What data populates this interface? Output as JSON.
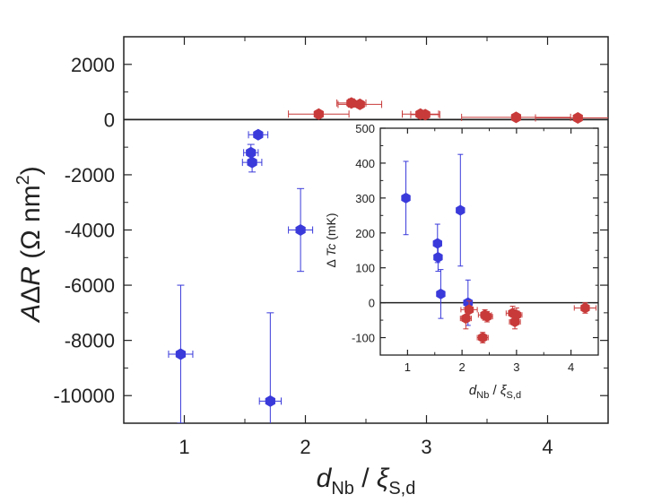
{
  "colors": {
    "blue": "#3a3adb",
    "red": "#c83a3a",
    "axis": "#222222"
  },
  "chart_data": [
    {
      "type": "scatter",
      "panel": "main",
      "ylabel_parts": {
        "A": "A",
        "delta": "Δ",
        "R": "R",
        "unit": " (Ω nm",
        "sup": "2",
        "close": ")"
      },
      "xlabel_parts": {
        "d": "d",
        "sub1": "Nb",
        "slash": " / ",
        "xi": "ξ",
        "sub2": "S,d"
      },
      "xlim": [
        0.5,
        4.5
      ],
      "ylim": [
        -11000,
        3000
      ],
      "xticks": [
        1,
        2,
        3,
        4
      ],
      "yticks": [
        2000,
        0,
        -2000,
        -4000,
        -6000,
        -8000,
        -10000
      ],
      "xtick_labels": [
        "1",
        "2",
        "3",
        "4"
      ],
      "ytick_labels": [
        "2000",
        "0",
        "-2000",
        "-4000",
        "-6000",
        "-8000",
        "-10000"
      ],
      "zero_line": 0,
      "series": [
        {
          "color": "blue",
          "points": [
            {
              "x": 1.61,
              "y": -550,
              "xerr": 0.08,
              "yerr": 0
            },
            {
              "x": 1.55,
              "y": -1200,
              "xerr": 0.06,
              "yerr": 300
            },
            {
              "x": 1.56,
              "y": -1550,
              "xerr": 0.08,
              "yerr": 350
            },
            {
              "x": 1.96,
              "y": -4000,
              "xerr": 0.1,
              "yerr": 1500
            },
            {
              "x": 0.97,
              "y": -8500,
              "xerr": 0.1,
              "yerr": 2500
            },
            {
              "x": 1.71,
              "y": -10200,
              "xerr": 0.09,
              "yerr": 3200
            }
          ]
        },
        {
          "color": "red",
          "points": [
            {
              "x": 2.11,
              "y": 200,
              "xerr": 0.25,
              "yerr": 80
            },
            {
              "x": 2.38,
              "y": 600,
              "xerr": 0.12,
              "yerr": 150
            },
            {
              "x": 2.45,
              "y": 550,
              "xerr": 0.18,
              "yerr": 120
            },
            {
              "x": 2.95,
              "y": 200,
              "xerr": 0.15,
              "yerr": 60
            },
            {
              "x": 2.99,
              "y": 180,
              "xerr": 0.12,
              "yerr": 50
            },
            {
              "x": 3.74,
              "y": 80,
              "xerr": 0.45,
              "yerr": 40
            },
            {
              "x": 4.25,
              "y": 60,
              "xerr": 0.35,
              "yerr": 40
            }
          ]
        }
      ]
    },
    {
      "type": "scatter",
      "panel": "inset",
      "ylabel_parts": {
        "delta": "Δ ",
        "T": "Tc",
        "unit": " (mK)"
      },
      "xlabel_parts": {
        "d": "d",
        "sub1": "Nb",
        "slash": " / ",
        "xi": "ξ",
        "sub2": "S,d"
      },
      "xlim": [
        0.5,
        4.5
      ],
      "ylim": [
        -150,
        500
      ],
      "xticks": [
        1,
        2,
        3,
        4
      ],
      "yticks": [
        500,
        400,
        300,
        200,
        100,
        0,
        -100
      ],
      "xtick_labels": [
        "1",
        "2",
        "3",
        "4"
      ],
      "ytick_labels": [
        "500",
        "400",
        "300",
        "200",
        "100",
        "0",
        "-100"
      ],
      "zero_line": 0,
      "series": [
        {
          "color": "blue",
          "points": [
            {
              "x": 0.97,
              "y": 300,
              "xerr": 0,
              "yerr": 105
            },
            {
              "x": 1.55,
              "y": 170,
              "xerr": 0.04,
              "yerr": 55
            },
            {
              "x": 1.56,
              "y": 130,
              "xerr": 0.05,
              "yerr": 40
            },
            {
              "x": 1.61,
              "y": 25,
              "xerr": 0.05,
              "yerr": 70
            },
            {
              "x": 1.97,
              "y": 265,
              "xerr": 0,
              "yerr": 160
            },
            {
              "x": 2.11,
              "y": 0,
              "xerr": 0.08,
              "yerr": 65
            }
          ]
        },
        {
          "color": "red",
          "points": [
            {
              "x": 2.07,
              "y": -45,
              "xerr": 0.1,
              "yerr": 30
            },
            {
              "x": 2.13,
              "y": -20,
              "xerr": 0.15,
              "yerr": 25
            },
            {
              "x": 2.38,
              "y": -100,
              "xerr": 0.1,
              "yerr": 15
            },
            {
              "x": 2.42,
              "y": -35,
              "xerr": 0.12,
              "yerr": 15
            },
            {
              "x": 2.46,
              "y": -40,
              "xerr": 0.1,
              "yerr": 15
            },
            {
              "x": 2.93,
              "y": -30,
              "xerr": 0.12,
              "yerr": 20
            },
            {
              "x": 2.97,
              "y": -55,
              "xerr": 0.1,
              "yerr": 20
            },
            {
              "x": 3.0,
              "y": -35,
              "xerr": 0.1,
              "yerr": 20
            },
            {
              "x": 4.26,
              "y": -15,
              "xerr": 0.2,
              "yerr": 15
            }
          ]
        }
      ]
    }
  ]
}
